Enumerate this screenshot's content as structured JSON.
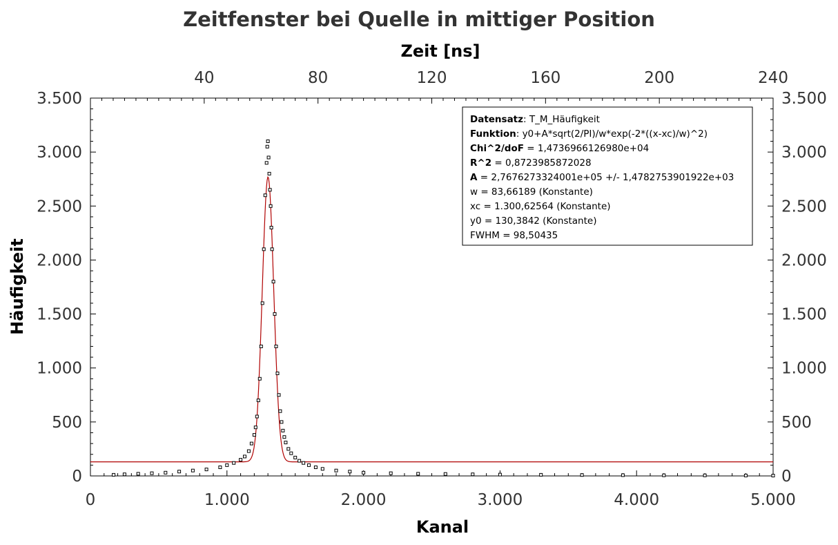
{
  "chart_data": {
    "type": "scatter",
    "title": "Zeitfenster bei Quelle in mittiger Position",
    "xlabel": "Kanal",
    "ylabel": "Häufigkeit",
    "x2label": "Zeit [ns]",
    "xlim": [
      0,
      5000
    ],
    "ylim": [
      0,
      3500
    ],
    "x2lim": [
      0,
      240
    ],
    "xticks": [
      0,
      1000,
      2000,
      3000,
      4000,
      5000
    ],
    "xtick_labels": [
      "0",
      "1.000",
      "2.000",
      "3.000",
      "4.000",
      "5.000"
    ],
    "yticks": [
      0,
      500,
      1000,
      1500,
      2000,
      2500,
      3000,
      3500
    ],
    "ytick_labels": [
      "0",
      "500",
      "1.000",
      "1.500",
      "2.000",
      "2.500",
      "3.000",
      "3.500"
    ],
    "x2ticks": [
      40,
      80,
      120,
      160,
      200,
      240
    ],
    "x2tick_labels": [
      "40",
      "80",
      "120",
      "160",
      "200",
      "240"
    ],
    "grid": false,
    "legend_position": "top-right",
    "series": [
      {
        "type": "scatter",
        "marker": "open-square",
        "color": "#000000",
        "x": [
          170,
          250,
          350,
          450,
          550,
          650,
          750,
          850,
          950,
          1000,
          1050,
          1100,
          1130,
          1160,
          1180,
          1200,
          1210,
          1220,
          1230,
          1240,
          1250,
          1260,
          1270,
          1280,
          1290,
          1295,
          1300,
          1305,
          1310,
          1315,
          1320,
          1325,
          1330,
          1340,
          1350,
          1360,
          1370,
          1380,
          1390,
          1400,
          1410,
          1420,
          1430,
          1450,
          1470,
          1500,
          1530,
          1560,
          1600,
          1650,
          1700,
          1800,
          1900,
          2000,
          2200,
          2400,
          2600,
          2800,
          3000,
          3300,
          3600,
          3900,
          4200,
          4500,
          4800,
          5000
        ],
        "y": [
          10,
          15,
          20,
          25,
          30,
          40,
          50,
          60,
          80,
          100,
          120,
          150,
          180,
          230,
          300,
          380,
          450,
          550,
          700,
          900,
          1200,
          1600,
          2100,
          2600,
          2900,
          3050,
          3100,
          2950,
          2800,
          2650,
          2500,
          2300,
          2100,
          1800,
          1500,
          1200,
          950,
          750,
          600,
          500,
          420,
          360,
          310,
          250,
          210,
          170,
          140,
          120,
          100,
          80,
          65,
          50,
          40,
          30,
          25,
          20,
          18,
          15,
          12,
          10,
          8,
          7,
          6,
          5,
          4,
          3
        ]
      },
      {
        "type": "line",
        "color": "#b00000",
        "fit": "gauss",
        "y0": 130.3842,
        "A": 276762.73324001,
        "w": 83.66189,
        "xc": 1300.62564,
        "x_range": [
          0,
          5000
        ]
      }
    ],
    "info_box": {
      "position": "top-right",
      "lines": [
        {
          "label": "Datensatz",
          "sep": ": ",
          "value": "T_M_Häufigkeit"
        },
        {
          "label": "Funktion",
          "sep": ": ",
          "value": "y0+A*sqrt(2/PI)/w*exp(-2*((x-xc)/w)^2)"
        },
        {
          "label": "Chi^2/doF",
          "sep": " = ",
          "value": "1,4736966126980e+04"
        },
        {
          "label": "R^2",
          "sep": " = ",
          "value": "0,8723985872028"
        },
        {
          "label": "A",
          "sep": " = ",
          "value": "2,7676273324001e+05 +/- 1,4782753901922e+03"
        },
        {
          "label": "",
          "sep": "",
          "value": "w = 83,66189 (Konstante)"
        },
        {
          "label": "",
          "sep": "",
          "value": "xc = 1.300,62564 (Konstante)"
        },
        {
          "label": "",
          "sep": "",
          "value": "y0 = 130,3842 (Konstante)"
        },
        {
          "label": "",
          "sep": "",
          "value": "FWHM = 98,50435"
        }
      ]
    }
  }
}
